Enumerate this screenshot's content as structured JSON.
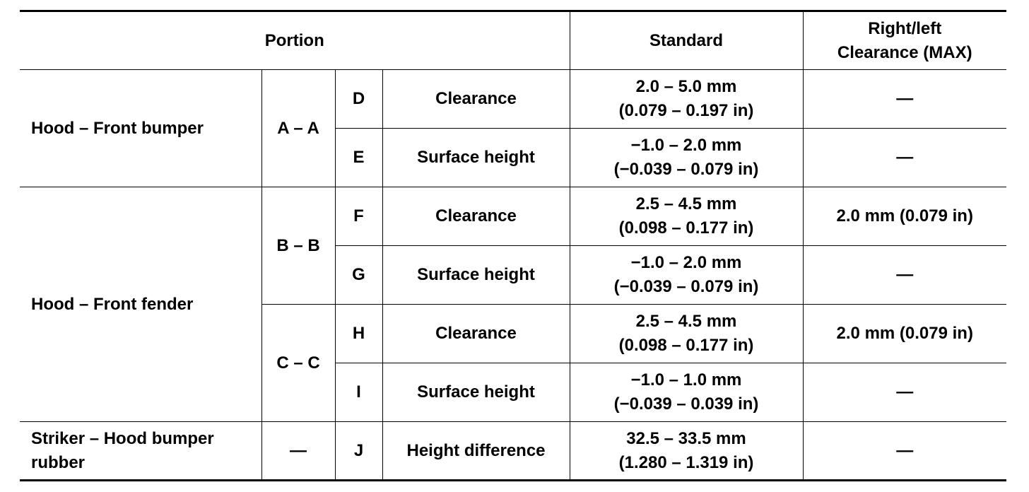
{
  "header": {
    "portion": "Portion",
    "standard": "Standard",
    "max": "Right/left Clearance (MAX)"
  },
  "groups": [
    {
      "portion": "Hood – Front bumper",
      "sections": [
        {
          "section": "A – A",
          "points": [
            {
              "point": "D",
              "item": "Clearance",
              "standard": [
                "2.0 – 5.0 mm",
                "(0.079 – 0.197 in)"
              ],
              "max": "—"
            },
            {
              "point": "E",
              "item": "Surface height",
              "standard": [
                "−1.0 – 2.0 mm",
                "(−0.039 – 0.079 in)"
              ],
              "max": "—"
            }
          ]
        }
      ]
    },
    {
      "portion": "Hood – Front fender",
      "sections": [
        {
          "section": "B – B",
          "points": [
            {
              "point": "F",
              "item": "Clearance",
              "standard": [
                "2.5 – 4.5 mm",
                "(0.098 – 0.177 in)"
              ],
              "max": "2.0 mm (0.079 in)"
            },
            {
              "point": "G",
              "item": "Surface height",
              "standard": [
                "−1.0 – 2.0 mm",
                "(−0.039 – 0.079 in)"
              ],
              "max": "—"
            }
          ]
        },
        {
          "section": "C – C",
          "points": [
            {
              "point": "H",
              "item": "Clearance",
              "standard": [
                "2.5 – 4.5 mm",
                "(0.098 – 0.177 in)"
              ],
              "max": "2.0 mm (0.079 in)"
            },
            {
              "point": "I",
              "item": "Surface height",
              "standard": [
                "−1.0 – 1.0 mm",
                "(−0.039 – 0.039 in)"
              ],
              "max": "—"
            }
          ]
        }
      ]
    },
    {
      "portion": "Striker – Hood bumper rubber",
      "sections": [
        {
          "section": "—",
          "points": [
            {
              "point": "J",
              "item": "Height difference",
              "standard": [
                "32.5 – 33.5 mm",
                "(1.280 – 1.319 in)"
              ],
              "max": "—"
            }
          ]
        }
      ]
    }
  ]
}
